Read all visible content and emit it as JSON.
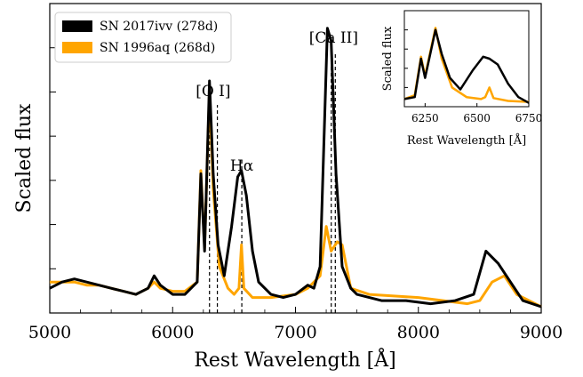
{
  "chart_data": [
    {
      "type": "line",
      "panel": "main",
      "xlabel": "Rest Wavelength [Å]",
      "ylabel": "Scaled flux",
      "xlim": [
        5000,
        9000
      ],
      "xticks": [
        "5000",
        "6000",
        "7000",
        "8000",
        "9000"
      ],
      "y_tick_labels_shown": false,
      "grid": false,
      "legend": {
        "placement": "top-left",
        "entries": [
          {
            "label": "SN 2017ivv (278d)",
            "color": "#000000"
          },
          {
            "label": "SN 1996aq (268d)",
            "color": "#FFA500"
          }
        ]
      },
      "series": [
        {
          "name": "SN 2017ivv (278d)",
          "color": "#000000",
          "points": [
            [
              5000,
              0.08
            ],
            [
              5100,
              0.1
            ],
            [
              5200,
              0.11
            ],
            [
              5300,
              0.1
            ],
            [
              5400,
              0.09
            ],
            [
              5500,
              0.08
            ],
            [
              5600,
              0.07
            ],
            [
              5700,
              0.06
            ],
            [
              5800,
              0.08
            ],
            [
              5850,
              0.12
            ],
            [
              5900,
              0.09
            ],
            [
              6000,
              0.06
            ],
            [
              6100,
              0.06
            ],
            [
              6200,
              0.1
            ],
            [
              6230,
              0.45
            ],
            [
              6260,
              0.2
            ],
            [
              6300,
              0.75
            ],
            [
              6330,
              0.45
            ],
            [
              6370,
              0.22
            ],
            [
              6420,
              0.12
            ],
            [
              6480,
              0.28
            ],
            [
              6530,
              0.44
            ],
            [
              6560,
              0.46
            ],
            [
              6600,
              0.38
            ],
            [
              6650,
              0.2
            ],
            [
              6700,
              0.1
            ],
            [
              6800,
              0.06
            ],
            [
              6900,
              0.05
            ],
            [
              7000,
              0.06
            ],
            [
              7100,
              0.09
            ],
            [
              7150,
              0.08
            ],
            [
              7200,
              0.15
            ],
            [
              7260,
              0.92
            ],
            [
              7290,
              0.88
            ],
            [
              7330,
              0.45
            ],
            [
              7380,
              0.15
            ],
            [
              7450,
              0.08
            ],
            [
              7500,
              0.06
            ],
            [
              7700,
              0.04
            ],
            [
              7900,
              0.04
            ],
            [
              8100,
              0.03
            ],
            [
              8300,
              0.04
            ],
            [
              8450,
              0.06
            ],
            [
              8550,
              0.2
            ],
            [
              8650,
              0.16
            ],
            [
              8750,
              0.1
            ],
            [
              8850,
              0.04
            ],
            [
              9000,
              0.02
            ]
          ]
        },
        {
          "name": "SN 1996aq (268d)",
          "color": "#FFA500",
          "points": [
            [
              5000,
              0.1
            ],
            [
              5100,
              0.1
            ],
            [
              5200,
              0.1
            ],
            [
              5300,
              0.09
            ],
            [
              5400,
              0.09
            ],
            [
              5500,
              0.08
            ],
            [
              5600,
              0.07
            ],
            [
              5700,
              0.06
            ],
            [
              5800,
              0.08
            ],
            [
              5850,
              0.1
            ],
            [
              5900,
              0.08
            ],
            [
              6000,
              0.07
            ],
            [
              6100,
              0.07
            ],
            [
              6200,
              0.1
            ],
            [
              6230,
              0.46
            ],
            [
              6260,
              0.21
            ],
            [
              6300,
              0.72
            ],
            [
              6330,
              0.4
            ],
            [
              6380,
              0.15
            ],
            [
              6450,
              0.08
            ],
            [
              6500,
              0.06
            ],
            [
              6540,
              0.08
            ],
            [
              6560,
              0.22
            ],
            [
              6580,
              0.08
            ],
            [
              6650,
              0.05
            ],
            [
              6800,
              0.05
            ],
            [
              7000,
              0.06
            ],
            [
              7100,
              0.08
            ],
            [
              7200,
              0.12
            ],
            [
              7250,
              0.28
            ],
            [
              7290,
              0.2
            ],
            [
              7340,
              0.23
            ],
            [
              7380,
              0.22
            ],
            [
              7450,
              0.08
            ],
            [
              7600,
              0.06
            ],
            [
              8000,
              0.05
            ],
            [
              8400,
              0.03
            ],
            [
              8500,
              0.04
            ],
            [
              8600,
              0.1
            ],
            [
              8700,
              0.12
            ],
            [
              8800,
              0.06
            ],
            [
              9000,
              0.02
            ]
          ]
        }
      ],
      "annotations": [
        {
          "text": "[O I]",
          "x": 6330,
          "lines_x": [
            6300,
            6364
          ]
        },
        {
          "text": "Hα",
          "x": 6563,
          "lines_x": [
            6563
          ]
        },
        {
          "text": "[Ca II]",
          "x": 7310,
          "lines_x": [
            7291,
            7324
          ]
        }
      ]
    },
    {
      "type": "line",
      "panel": "inset",
      "xlabel": "Rest Wavelength [Å]",
      "ylabel": "Scaled flux",
      "xlim": [
        6150,
        6750
      ],
      "xticks": [
        "6250",
        "6500",
        "6750"
      ],
      "y_tick_labels_shown": false,
      "series": [
        {
          "name": "SN 2017ivv (278d)",
          "color": "#000000",
          "points": [
            [
              6150,
              0.08
            ],
            [
              6200,
              0.1
            ],
            [
              6230,
              0.5
            ],
            [
              6250,
              0.3
            ],
            [
              6300,
              0.8
            ],
            [
              6330,
              0.55
            ],
            [
              6370,
              0.3
            ],
            [
              6420,
              0.18
            ],
            [
              6480,
              0.38
            ],
            [
              6530,
              0.52
            ],
            [
              6560,
              0.5
            ],
            [
              6600,
              0.44
            ],
            [
              6650,
              0.24
            ],
            [
              6700,
              0.1
            ],
            [
              6750,
              0.04
            ]
          ]
        },
        {
          "name": "SN 1996aq (268d)",
          "color": "#FFA500",
          "points": [
            [
              6150,
              0.08
            ],
            [
              6200,
              0.12
            ],
            [
              6230,
              0.52
            ],
            [
              6250,
              0.32
            ],
            [
              6300,
              0.82
            ],
            [
              6330,
              0.5
            ],
            [
              6380,
              0.2
            ],
            [
              6450,
              0.1
            ],
            [
              6520,
              0.08
            ],
            [
              6540,
              0.1
            ],
            [
              6560,
              0.2
            ],
            [
              6580,
              0.09
            ],
            [
              6650,
              0.06
            ],
            [
              6750,
              0.05
            ]
          ]
        }
      ]
    }
  ]
}
